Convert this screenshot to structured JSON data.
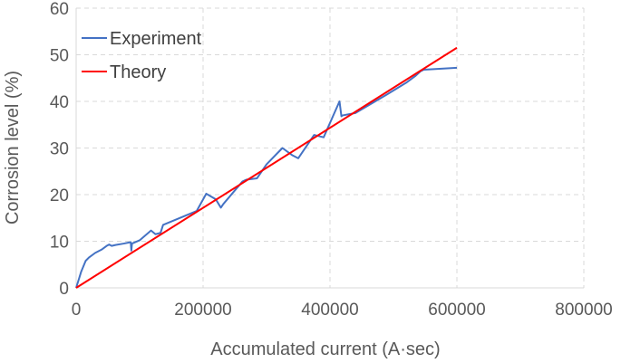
{
  "chart_data": {
    "type": "line",
    "title": "",
    "xlabel": "Accumulated current (A·sec)",
    "ylabel": "Corrosion level (%)",
    "xlim": [
      0,
      800000
    ],
    "ylim": [
      0,
      60
    ],
    "xticks": [
      0,
      200000,
      400000,
      600000,
      800000
    ],
    "yticks": [
      0,
      10,
      20,
      30,
      40,
      50,
      60
    ],
    "xtick_labels": [
      "0",
      "200000",
      "400000",
      "600000",
      "800000"
    ],
    "ytick_labels": [
      "0",
      "10",
      "20",
      "30",
      "40",
      "50",
      "60"
    ],
    "grid": true,
    "legend": "top-left",
    "series": [
      {
        "name": "Experiment",
        "color": "#4472c4",
        "x": [
          0,
          8000,
          15000,
          20000,
          30000,
          40000,
          48000,
          52000,
          56000,
          62000,
          75000,
          86000,
          87000,
          88000,
          100000,
          118000,
          125000,
          133000,
          137000,
          190000,
          205000,
          220000,
          228000,
          232000,
          262000,
          268000,
          285000,
          300000,
          325000,
          340000,
          350000,
          375000,
          390000,
          415000,
          418000,
          420000,
          440000,
          490000,
          520000,
          535000,
          543000,
          548000,
          600000
        ],
        "y": [
          0,
          3.5,
          5.8,
          6.5,
          7.5,
          8.2,
          9.0,
          9.3,
          9.0,
          9.2,
          9.5,
          9.8,
          8.0,
          9.5,
          10.2,
          12.3,
          11.5,
          11.8,
          13.5,
          16.5,
          20.2,
          19.0,
          17.2,
          18.0,
          22.8,
          23.2,
          23.5,
          26.5,
          30.0,
          28.5,
          27.8,
          32.8,
          32.3,
          40.0,
          36.8,
          37.0,
          37.5,
          41.5,
          44.0,
          45.5,
          46.5,
          46.8,
          47.2
        ]
      },
      {
        "name": "Theory",
        "color": "#ff0000",
        "x": [
          0,
          600000
        ],
        "y": [
          0,
          51.5
        ]
      }
    ]
  }
}
